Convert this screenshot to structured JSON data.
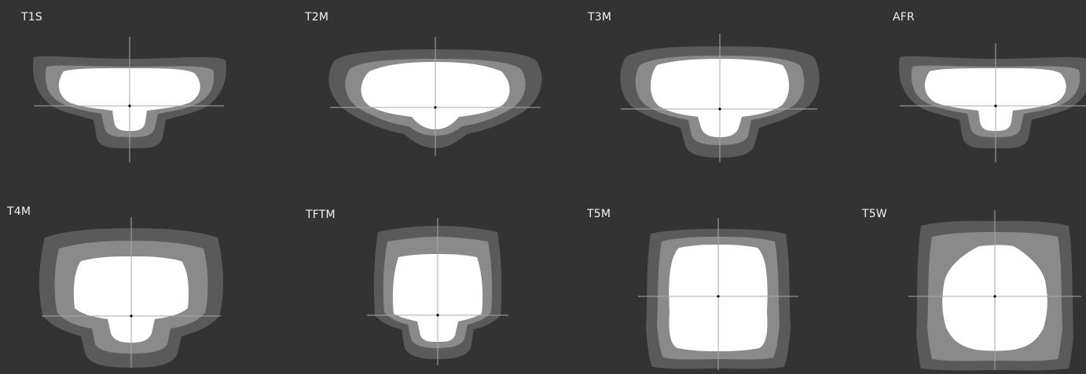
{
  "colors": {
    "background": "#333333",
    "outer_ring": "#5a5a5a",
    "middle_ring": "#8a8a8a",
    "core": "#ffffff",
    "axis": "#a8a8a8",
    "center_dot": "#000000",
    "label": "#f2f2f2"
  },
  "patterns": [
    {
      "label": "T1S",
      "shape": "tsl"
    },
    {
      "label": "T2M",
      "shape": "tml"
    },
    {
      "label": "T3M",
      "shape": "tm3"
    },
    {
      "label": "AFR",
      "shape": "tsl"
    },
    {
      "label": "T4M",
      "shape": "t4"
    },
    {
      "label": "TFTM",
      "shape": "tft"
    },
    {
      "label": "T5M",
      "shape": "sq"
    },
    {
      "label": "T5W",
      "shape": "oct"
    }
  ]
}
